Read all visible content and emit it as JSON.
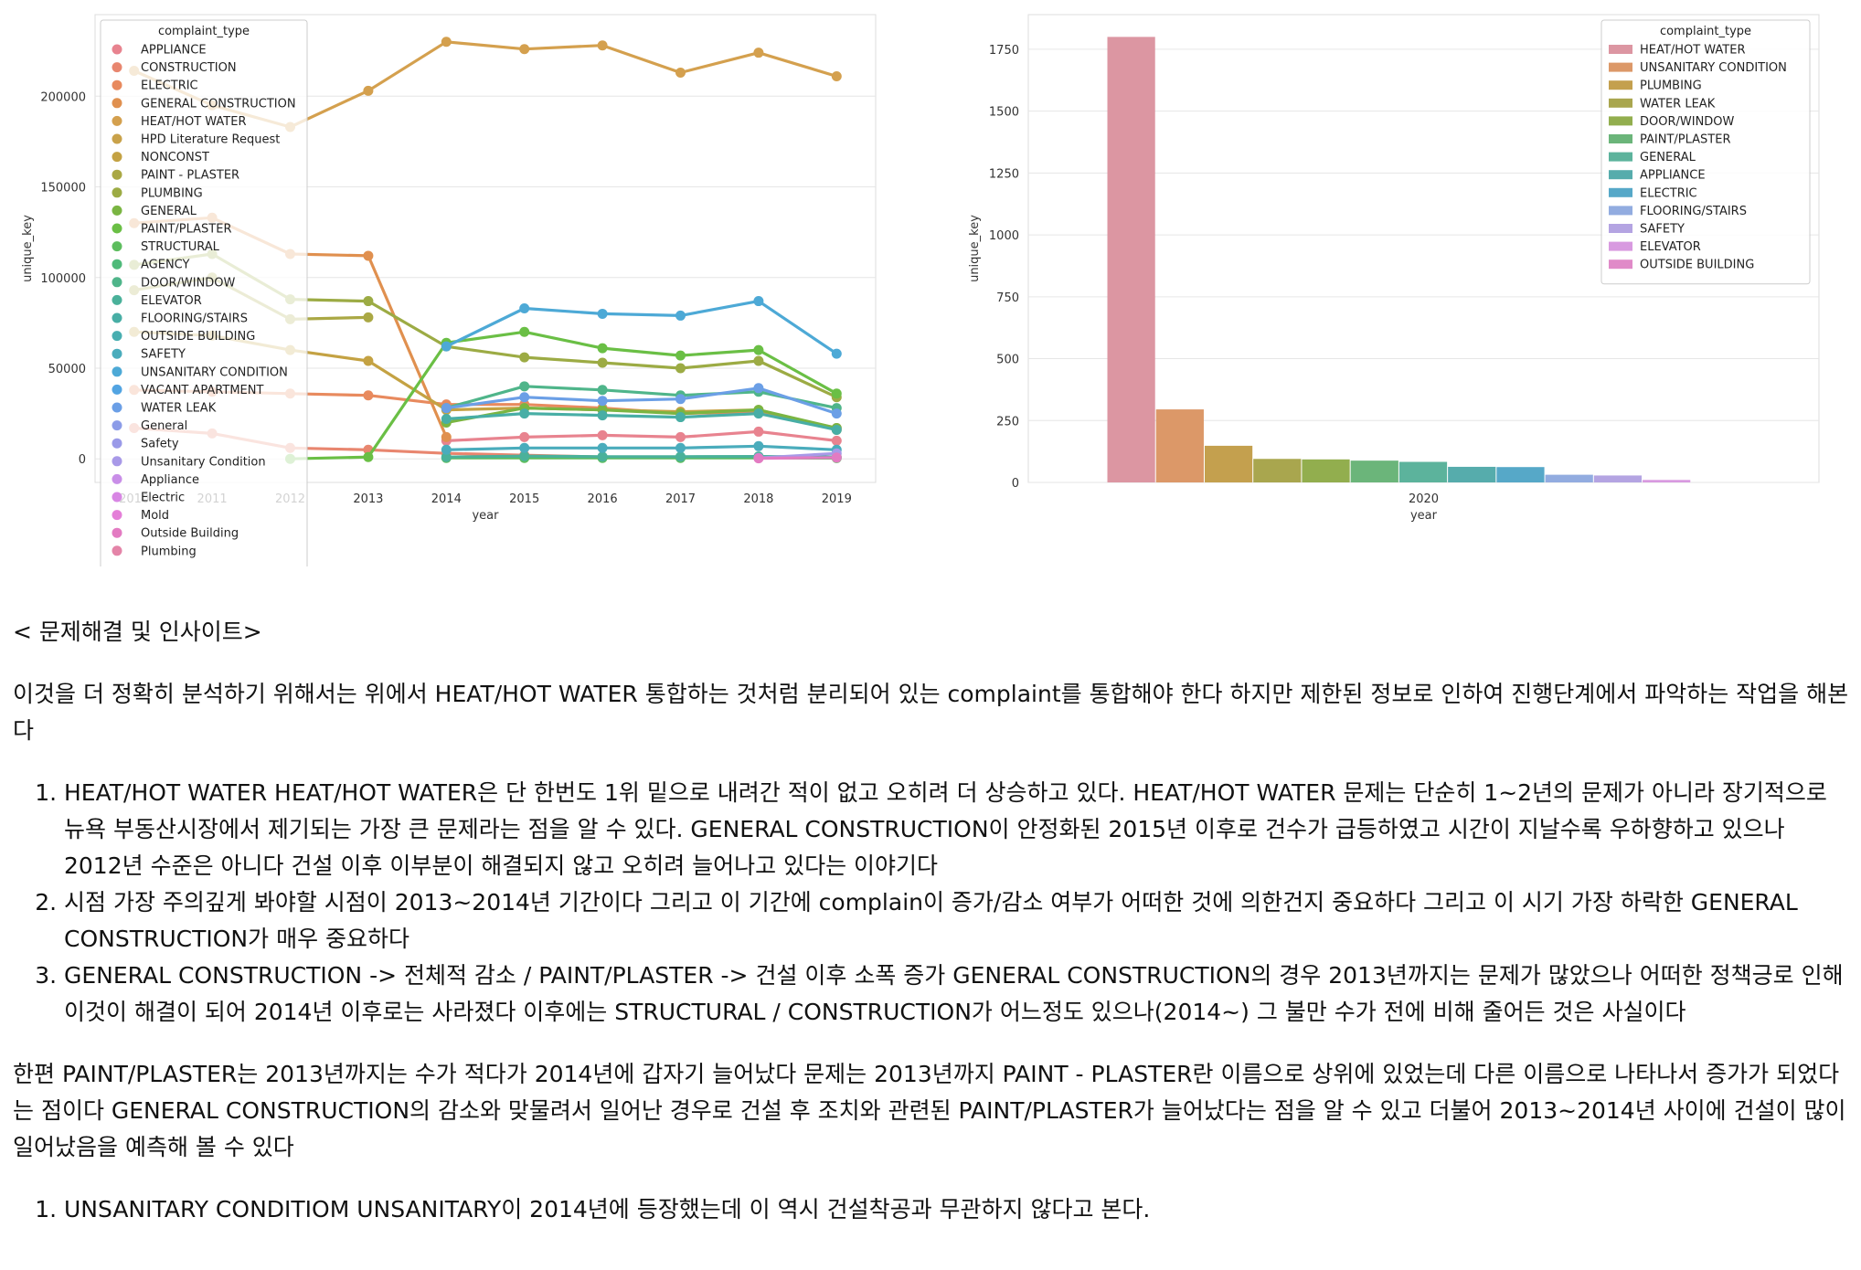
{
  "chart_data": [
    {
      "type": "line",
      "xlabel": "year",
      "ylabel": "unique_key",
      "x": [
        "2010",
        "2011",
        "2012",
        "2013",
        "2014",
        "2015",
        "2016",
        "2017",
        "2018",
        "2019"
      ],
      "x_tick_labels": [
        "2010",
        "2011",
        "2012",
        "2013",
        "2014",
        "2015",
        "2016",
        "2017",
        "2018",
        "2019"
      ],
      "ylim": [
        -13000,
        245000
      ],
      "yticks": [
        0,
        50000,
        100000,
        150000,
        200000
      ],
      "grid": true,
      "legend_title": "complaint_type",
      "legend_position": "upper-left",
      "series": [
        {
          "name": "APPLIANCE",
          "color": "#e8838f",
          "values": [
            null,
            null,
            null,
            null,
            10000,
            12000,
            13000,
            12000,
            15000,
            10000
          ]
        },
        {
          "name": "CONSTRUCTION",
          "color": "#e8866f",
          "values": [
            17000,
            14000,
            6000,
            5000,
            3000,
            2000,
            1000,
            1000,
            1000,
            1000
          ]
        },
        {
          "name": "ELECTRIC",
          "color": "#e88a5e",
          "values": [
            38000,
            37000,
            36000,
            35000,
            30000,
            30000,
            28000,
            25000,
            26000,
            17000
          ]
        },
        {
          "name": "GENERAL CONSTRUCTION",
          "color": "#e0904f",
          "values": [
            130000,
            133000,
            113000,
            112000,
            12000,
            null,
            null,
            null,
            null,
            null
          ]
        },
        {
          "name": "HEAT/HOT WATER",
          "color": "#d4a04e",
          "values": [
            214000,
            195000,
            183000,
            203000,
            230000,
            226000,
            228000,
            213000,
            224000,
            211000
          ]
        },
        {
          "name": "NONCONST",
          "color": "#c4a243",
          "values": [
            70000,
            68000,
            60000,
            54000,
            27000,
            28000,
            27000,
            26000,
            27000,
            16000
          ]
        },
        {
          "name": "PAINT - PLASTER",
          "color": "#aaa844",
          "values": [
            93000,
            100000,
            77000,
            78000,
            null,
            null,
            null,
            null,
            null,
            null
          ]
        },
        {
          "name": "PLUMBING",
          "color": "#9cab44",
          "values": [
            107000,
            113000,
            88000,
            87000,
            62000,
            56000,
            53000,
            50000,
            54000,
            34000
          ]
        },
        {
          "name": "GENERAL",
          "color": "#7ab542",
          "values": [
            null,
            null,
            null,
            null,
            20000,
            28000,
            27000,
            25000,
            27000,
            17000
          ]
        },
        {
          "name": "PAINT/PLASTER",
          "color": "#6abf45",
          "values": [
            null,
            null,
            0,
            1000,
            64000,
            70000,
            61000,
            57000,
            60000,
            36000
          ]
        },
        {
          "name": "STRUCTURAL",
          "color": "#5dbd5e",
          "values": [
            null,
            null,
            null,
            null,
            500,
            500,
            500,
            500,
            500,
            400
          ]
        },
        {
          "name": "DOOR/WINDOW",
          "color": "#4fb58a",
          "values": [
            null,
            null,
            null,
            null,
            28000,
            40000,
            38000,
            35000,
            37000,
            28000
          ]
        },
        {
          "name": "ELEVATOR",
          "color": "#4ab19a",
          "values": [
            null,
            null,
            null,
            null,
            1000,
            1500,
            1200,
            1200,
            1300,
            1000
          ]
        },
        {
          "name": "FLOORING/STAIRS",
          "color": "#48aea5",
          "values": [
            null,
            null,
            null,
            null,
            22000,
            25000,
            24000,
            23000,
            25000,
            16000
          ]
        },
        {
          "name": "SAFETY",
          "color": "#4aacbc",
          "values": [
            null,
            null,
            null,
            null,
            5000,
            6000,
            6000,
            6000,
            7000,
            5000
          ]
        },
        {
          "name": "UNSANITARY CONDITION",
          "color": "#4da9d6",
          "values": [
            null,
            null,
            null,
            null,
            62000,
            83000,
            80000,
            79000,
            87000,
            58000
          ]
        },
        {
          "name": "WATER LEAK",
          "color": "#6b9fe6",
          "values": [
            null,
            null,
            null,
            null,
            28000,
            34000,
            32000,
            33000,
            39000,
            25000
          ]
        },
        {
          "name": "Unsanitary Condition",
          "color": "#a899e8",
          "values": [
            null,
            null,
            null,
            null,
            null,
            null,
            null,
            null,
            500,
            3000
          ]
        },
        {
          "name": "Outside Building",
          "color": "#e37bc2",
          "values": [
            null,
            null,
            null,
            null,
            null,
            null,
            null,
            null,
            300,
            700
          ]
        }
      ],
      "legend_entries": [
        {
          "name": "APPLIANCE",
          "color": "#e8838f"
        },
        {
          "name": "CONSTRUCTION",
          "color": "#e8866f"
        },
        {
          "name": "ELECTRIC",
          "color": "#e88a5e"
        },
        {
          "name": "GENERAL CONSTRUCTION",
          "color": "#e0904f"
        },
        {
          "name": "HEAT/HOT WATER",
          "color": "#d4a04e"
        },
        {
          "name": "HPD Literature Request",
          "color": "#c9a24a"
        },
        {
          "name": "NONCONST",
          "color": "#c4a243"
        },
        {
          "name": "PAINT - PLASTER",
          "color": "#aaa844"
        },
        {
          "name": "PLUMBING",
          "color": "#9cab44"
        },
        {
          "name": "GENERAL",
          "color": "#7ab542"
        },
        {
          "name": "PAINT/PLASTER",
          "color": "#6abf45"
        },
        {
          "name": "STRUCTURAL",
          "color": "#5dbd5e"
        },
        {
          "name": "AGENCY",
          "color": "#4fba7a"
        },
        {
          "name": "DOOR/WINDOW",
          "color": "#4fb58a"
        },
        {
          "name": "ELEVATOR",
          "color": "#4ab19a"
        },
        {
          "name": "FLOORING/STAIRS",
          "color": "#48aea5"
        },
        {
          "name": "OUTSIDE BUILDING",
          "color": "#48aeb0"
        },
        {
          "name": "SAFETY",
          "color": "#4aacbc"
        },
        {
          "name": "UNSANITARY CONDITION",
          "color": "#4da9d6"
        },
        {
          "name": "VACANT APARTMENT",
          "color": "#52a4e2"
        },
        {
          "name": "WATER LEAK",
          "color": "#6b9fe6"
        },
        {
          "name": "General",
          "color": "#8c9ce8"
        },
        {
          "name": "Safety",
          "color": "#9a9ae8"
        },
        {
          "name": "Unsanitary Condition",
          "color": "#a899e8"
        },
        {
          "name": "Appliance",
          "color": "#c98ee8"
        },
        {
          "name": "Electric",
          "color": "#d886e4"
        },
        {
          "name": "Mold",
          "color": "#e47fd8"
        },
        {
          "name": "Outside Building",
          "color": "#e37bc2"
        },
        {
          "name": "Plumbing",
          "color": "#e484a8"
        }
      ]
    },
    {
      "type": "bar",
      "xlabel": "year",
      "ylabel": "unique_key",
      "categories": [
        "2020"
      ],
      "ylim": [
        0,
        1800
      ],
      "yticks": [
        0,
        250,
        500,
        750,
        1000,
        1250,
        1500,
        1750
      ],
      "grid": true,
      "legend_title": "complaint_type",
      "legend_position": "upper-right",
      "series": [
        {
          "name": "HEAT/HOT WATER",
          "color": "#dc96a2",
          "values": [
            1800
          ]
        },
        {
          "name": "UNSANITARY CONDITION",
          "color": "#dc9868",
          "values": [
            295
          ]
        },
        {
          "name": "PLUMBING",
          "color": "#c4a04e",
          "values": [
            148
          ]
        },
        {
          "name": "WATER LEAK",
          "color": "#a9a64e",
          "values": [
            95
          ]
        },
        {
          "name": "DOOR/WINDOW",
          "color": "#92ae4e",
          "values": [
            93
          ]
        },
        {
          "name": "PAINT/PLASTER",
          "color": "#6bb57a",
          "values": [
            88
          ]
        },
        {
          "name": "GENERAL",
          "color": "#5cb39c",
          "values": [
            83
          ]
        },
        {
          "name": "APPLIANCE",
          "color": "#56acac",
          "values": [
            63
          ]
        },
        {
          "name": "ELECTRIC",
          "color": "#56a8c8",
          "values": [
            62
          ]
        },
        {
          "name": "FLOORING/STAIRS",
          "color": "#92ace0",
          "values": [
            31
          ]
        },
        {
          "name": "SAFETY",
          "color": "#b4a4e2",
          "values": [
            28
          ]
        },
        {
          "name": "ELEVATOR",
          "color": "#d89ae0",
          "values": [
            10
          ]
        },
        {
          "name": "OUTSIDE BUILDING",
          "color": "#e08ac8",
          "values": [
            0
          ]
        }
      ]
    }
  ],
  "text": {
    "heading": "< 문제해결 및 인사이트>",
    "intro": "이것을 더 정확히 분석하기 위해서는 위에서 HEAT/HOT WATER 통합하는 것처럼 분리되어 있는 complaint를 통합해야 한다 하지만 제한된 정보로 인하여 진행단계에서 파악하는 작업을 해본다",
    "list1": [
      "HEAT/HOT WATER HEAT/HOT WATER은 단 한번도 1위 밑으로 내려간 적이 없고 오히려 더 상승하고 있다. HEAT/HOT WATER 문제는 단순히 1~2년의 문제가 아니라 장기적으로 뉴욕 부동산시장에서 제기되는 가장 큰 문제라는 점을 알 수 있다. GENERAL CONSTRUCTION이 안정화된 2015년 이후로 건수가 급등하였고 시간이 지날수록 우하향하고 있으나 2012년 수준은 아니다 건설 이후 이부분이 해결되지 않고 오히려 늘어나고 있다는 이야기다",
      "시점 가장 주의깊게 봐야할 시점이 2013~2014년 기간이다 그리고 이 기간에 complain이 증가/감소 여부가 어떠한 것에 의한건지 중요하다 그리고 이 시기 가장 하락한 GENERAL CONSTRUCTION가 매우 중요하다",
      "GENERAL CONSTRUCTION -> 전체적 감소 / PAINT/PLASTER -> 건설 이후 소폭 증가 GENERAL CONSTRUCTION의 경우 2013년까지는 문제가 많았으나 어떠한 정책긍로 인해 이것이 해결이 되어 2014년 이후로는 사라졌다 이후에는 STRUCTURAL / CONSTRUCTION가 어느정도 있으나(2014~) 그 불만 수가 전에 비해 줄어든 것은 사실이다"
    ],
    "para2": "한편 PAINT/PLASTER는 2013년까지는 수가 적다가 2014년에 갑자기 늘어났다 문제는 2013년까지 PAINT - PLASTER란 이름으로 상위에 있었는데 다른 이름으로 나타나서 증가가 되었다는 점이다 GENERAL CONSTRUCTION의 감소와 맞물려서 일어난 경우로 건설 후 조치와 관련된 PAINT/PLASTER가 늘어났다는 점을 알 수 있고 더불어 2013~2014년 사이에 건설이 많이 일어났음을 예측해 볼 수 있다",
    "list2": [
      "UNSANITARY CONDITIOM UNSANITARY이 2014년에 등장했는데 이 역시 건설착공과 무관하지 않다고 본다."
    ]
  }
}
